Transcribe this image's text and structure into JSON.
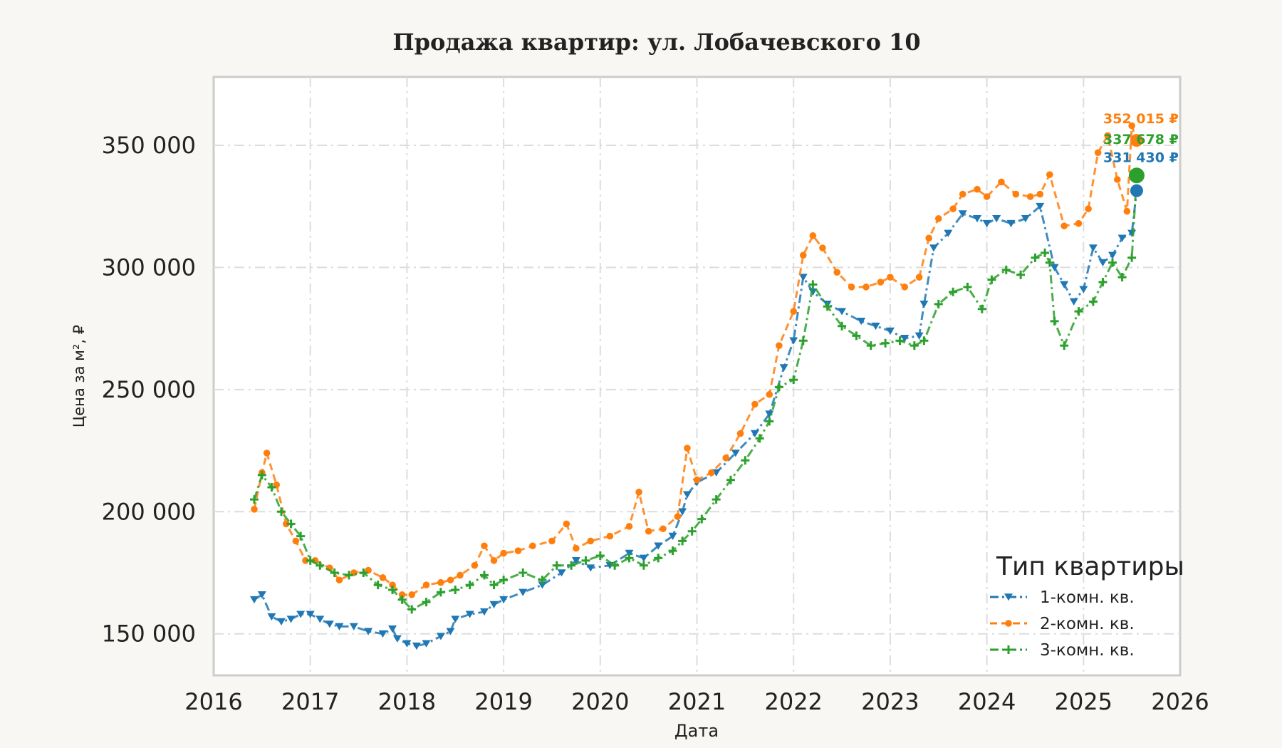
{
  "chart_data": {
    "type": "line",
    "title": "Продажа квартир: ул. Лобачевского 10",
    "xlabel": "Дата",
    "ylabel": "Цена за м², ₽",
    "xlim": [
      2016,
      2026
    ],
    "ylim": [
      133000,
      378000
    ],
    "x_ticks": [
      "2016",
      "2017",
      "2018",
      "2019",
      "2020",
      "2021",
      "2022",
      "2023",
      "2024",
      "2025",
      "2026"
    ],
    "y_ticks": [
      150000,
      200000,
      250000,
      300000,
      350000
    ],
    "y_tick_labels": [
      "150 000",
      "200 000",
      "250 000",
      "300 000",
      "350 000"
    ],
    "grid": true,
    "legend": {
      "title": "Тип квартиры",
      "placement": "bottom-right"
    },
    "series": [
      {
        "name": "1-комн. кв.",
        "color": "#1f77b4",
        "marker": "triangle-down",
        "linestyle": "dash-dot",
        "x": [
          2016.42,
          2016.5,
          2016.6,
          2016.7,
          2016.8,
          2016.9,
          2017.0,
          2017.1,
          2017.2,
          2017.3,
          2017.45,
          2017.6,
          2017.75,
          2017.85,
          2017.9,
          2018.0,
          2018.1,
          2018.2,
          2018.35,
          2018.45,
          2018.5,
          2018.65,
          2018.8,
          2018.9,
          2019.0,
          2019.2,
          2019.4,
          2019.6,
          2019.75,
          2019.9,
          2020.1,
          2020.3,
          2020.45,
          2020.6,
          2020.75,
          2020.85,
          2020.9,
          2021.0,
          2021.2,
          2021.4,
          2021.6,
          2021.75,
          2021.9,
          2022.0,
          2022.1,
          2022.2,
          2022.35,
          2022.5,
          2022.7,
          2022.85,
          2023.0,
          2023.15,
          2023.3,
          2023.35,
          2023.45,
          2023.6,
          2023.75,
          2023.9,
          2024.0,
          2024.1,
          2024.25,
          2024.4,
          2024.55,
          2024.7,
          2024.8,
          2024.9,
          2025.0,
          2025.1,
          2025.2,
          2025.3,
          2025.4,
          2025.5,
          2025.55
        ],
        "y": [
          164000,
          166000,
          157000,
          155000,
          156000,
          158000,
          158000,
          156000,
          154000,
          153000,
          153000,
          151000,
          150000,
          152000,
          148000,
          146000,
          145000,
          146000,
          149000,
          151000,
          156000,
          158000,
          159000,
          162000,
          164000,
          167000,
          170000,
          175000,
          180000,
          177000,
          178000,
          183000,
          181000,
          186000,
          190000,
          200000,
          207000,
          212000,
          216000,
          224000,
          232000,
          240000,
          259000,
          270000,
          296000,
          290000,
          285000,
          282000,
          278000,
          276000,
          274000,
          271000,
          272000,
          285000,
          308000,
          314000,
          322000,
          320000,
          318000,
          320000,
          318000,
          320000,
          325000,
          300000,
          293000,
          286000,
          291000,
          308000,
          302000,
          305000,
          312000,
          314000,
          331430
        ]
      },
      {
        "name": "2-комн. кв.",
        "color": "#ff7f0e",
        "marker": "circle",
        "linestyle": "dashed",
        "x": [
          2016.42,
          2016.5,
          2016.55,
          2016.65,
          2016.75,
          2016.85,
          2016.95,
          2017.05,
          2017.2,
          2017.3,
          2017.45,
          2017.6,
          2017.75,
          2017.85,
          2017.95,
          2018.05,
          2018.2,
          2018.35,
          2018.45,
          2018.55,
          2018.7,
          2018.8,
          2018.9,
          2019.0,
          2019.15,
          2019.3,
          2019.5,
          2019.65,
          2019.75,
          2019.9,
          2020.1,
          2020.3,
          2020.4,
          2020.5,
          2020.65,
          2020.8,
          2020.9,
          2021.0,
          2021.15,
          2021.3,
          2021.45,
          2021.6,
          2021.75,
          2021.85,
          2022.0,
          2022.1,
          2022.2,
          2022.3,
          2022.45,
          2022.6,
          2022.75,
          2022.9,
          2023.0,
          2023.15,
          2023.3,
          2023.4,
          2023.5,
          2023.65,
          2023.75,
          2023.9,
          2024.0,
          2024.15,
          2024.3,
          2024.45,
          2024.55,
          2024.65,
          2024.8,
          2024.95,
          2025.05,
          2025.15,
          2025.25,
          2025.35,
          2025.45,
          2025.5,
          2025.55
        ],
        "y": [
          201000,
          216000,
          224000,
          211000,
          195000,
          188000,
          180000,
          180000,
          177000,
          172000,
          175000,
          176000,
          173000,
          170000,
          166000,
          166000,
          170000,
          171000,
          172000,
          174000,
          178000,
          186000,
          180000,
          183000,
          184000,
          186000,
          188000,
          195000,
          185000,
          188000,
          190000,
          194000,
          208000,
          192000,
          193000,
          198000,
          226000,
          213000,
          216000,
          222000,
          232000,
          244000,
          248000,
          268000,
          282000,
          305000,
          313000,
          308000,
          298000,
          292000,
          292000,
          294000,
          296000,
          292000,
          296000,
          312000,
          320000,
          324000,
          330000,
          332000,
          329000,
          335000,
          330000,
          329000,
          330000,
          338000,
          317000,
          318000,
          324000,
          347000,
          354000,
          336000,
          323000,
          358000,
          352015
        ]
      },
      {
        "name": "3-комн. кв.",
        "color": "#2ca02c",
        "marker": "plus",
        "linestyle": "dash-dot",
        "x": [
          2016.42,
          2016.5,
          2016.6,
          2016.7,
          2016.8,
          2016.9,
          2017.0,
          2017.1,
          2017.25,
          2017.4,
          2017.55,
          2017.7,
          2017.85,
          2017.95,
          2018.05,
          2018.2,
          2018.35,
          2018.5,
          2018.65,
          2018.8,
          2018.9,
          2019.0,
          2019.2,
          2019.4,
          2019.55,
          2019.7,
          2019.85,
          2020.0,
          2020.15,
          2020.3,
          2020.45,
          2020.6,
          2020.75,
          2020.85,
          2020.95,
          2021.05,
          2021.2,
          2021.35,
          2021.5,
          2021.65,
          2021.75,
          2021.85,
          2022.0,
          2022.1,
          2022.2,
          2022.35,
          2022.5,
          2022.65,
          2022.8,
          2022.95,
          2023.1,
          2023.25,
          2023.35,
          2023.5,
          2023.65,
          2023.8,
          2023.95,
          2024.05,
          2024.2,
          2024.35,
          2024.5,
          2024.6,
          2024.65,
          2024.7,
          2024.8,
          2024.95,
          2025.1,
          2025.2,
          2025.3,
          2025.4,
          2025.5,
          2025.55
        ],
        "y": [
          205000,
          215000,
          210000,
          200000,
          195000,
          190000,
          180000,
          178000,
          175000,
          174000,
          175000,
          170000,
          168000,
          164000,
          160000,
          163000,
          167000,
          168000,
          170000,
          174000,
          170000,
          172000,
          175000,
          172000,
          178000,
          178000,
          180000,
          182000,
          178000,
          181000,
          178000,
          181000,
          184000,
          188000,
          192000,
          197000,
          205000,
          213000,
          221000,
          230000,
          237000,
          251000,
          254000,
          270000,
          293000,
          284000,
          276000,
          272000,
          268000,
          269000,
          270000,
          268000,
          270000,
          285000,
          290000,
          292000,
          283000,
          295000,
          299000,
          297000,
          304000,
          306000,
          302000,
          278000,
          268000,
          282000,
          286000,
          294000,
          302000,
          296000,
          304000,
          337678
        ]
      }
    ],
    "end_labels": [
      "331 430 ₽",
      "352 015 ₽",
      "337 678 ₽"
    ]
  }
}
